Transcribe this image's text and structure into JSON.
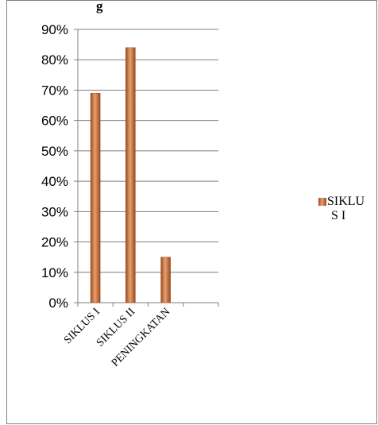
{
  "chart_data": {
    "type": "bar",
    "title": "",
    "title_fragment": "g",
    "categories": [
      "SIKLUS I",
      "SIKLUS II",
      "PENINGKATAN",
      ""
    ],
    "series": [
      {
        "name": "SIKLUS I",
        "legend_lines": [
          "SIKLU",
          "S I"
        ],
        "values": [
          0.69,
          0.84,
          0.15,
          null
        ]
      }
    ],
    "y_ticks": [
      "0%",
      "10%",
      "20%",
      "30%",
      "40%",
      "50%",
      "60%",
      "70%",
      "80%",
      "90%"
    ],
    "ylim": [
      0,
      0.9
    ],
    "grid": true,
    "legend_position": "right",
    "colors": {
      "bar": "#c8692d",
      "bar_light": "#e8a070",
      "bar_dark": "#9a4a1c",
      "grid": "#7f7f7f"
    }
  }
}
